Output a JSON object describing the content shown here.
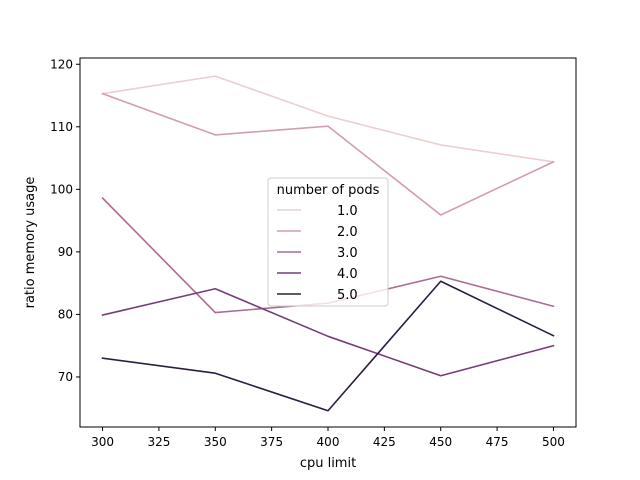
{
  "chart_data": {
    "type": "line",
    "title": "",
    "xlabel": "cpu limit",
    "ylabel": "ratio memory usage",
    "xlim": [
      290,
      510
    ],
    "ylim": [
      62,
      121
    ],
    "xticks": [
      300,
      325,
      350,
      375,
      400,
      425,
      450,
      475,
      500
    ],
    "yticks": [
      70,
      80,
      90,
      100,
      110,
      120
    ],
    "x": [
      300,
      350,
      400,
      450,
      500
    ],
    "grid": false,
    "legend": {
      "title": "number of pods",
      "placement": "center"
    },
    "series": [
      {
        "name": "1.0",
        "color": "#ebcfcf",
        "values": [
          115.3,
          118.1,
          111.7,
          107.1,
          104.4
        ]
      },
      {
        "name": "2.0",
        "color": "#d29db0",
        "values": [
          115.3,
          108.7,
          110.1,
          95.9,
          104.4
        ]
      },
      {
        "name": "3.0",
        "color": "#ae6a93",
        "values": [
          98.6,
          80.3,
          81.8,
          86.1,
          81.3
        ]
      },
      {
        "name": "4.0",
        "color": "#723e73",
        "values": [
          79.9,
          84.1,
          76.5,
          70.2,
          75.0
        ]
      },
      {
        "name": "5.0",
        "color": "#2c1e3e",
        "values": [
          73.0,
          70.6,
          64.6,
          85.3,
          76.6
        ]
      }
    ]
  }
}
